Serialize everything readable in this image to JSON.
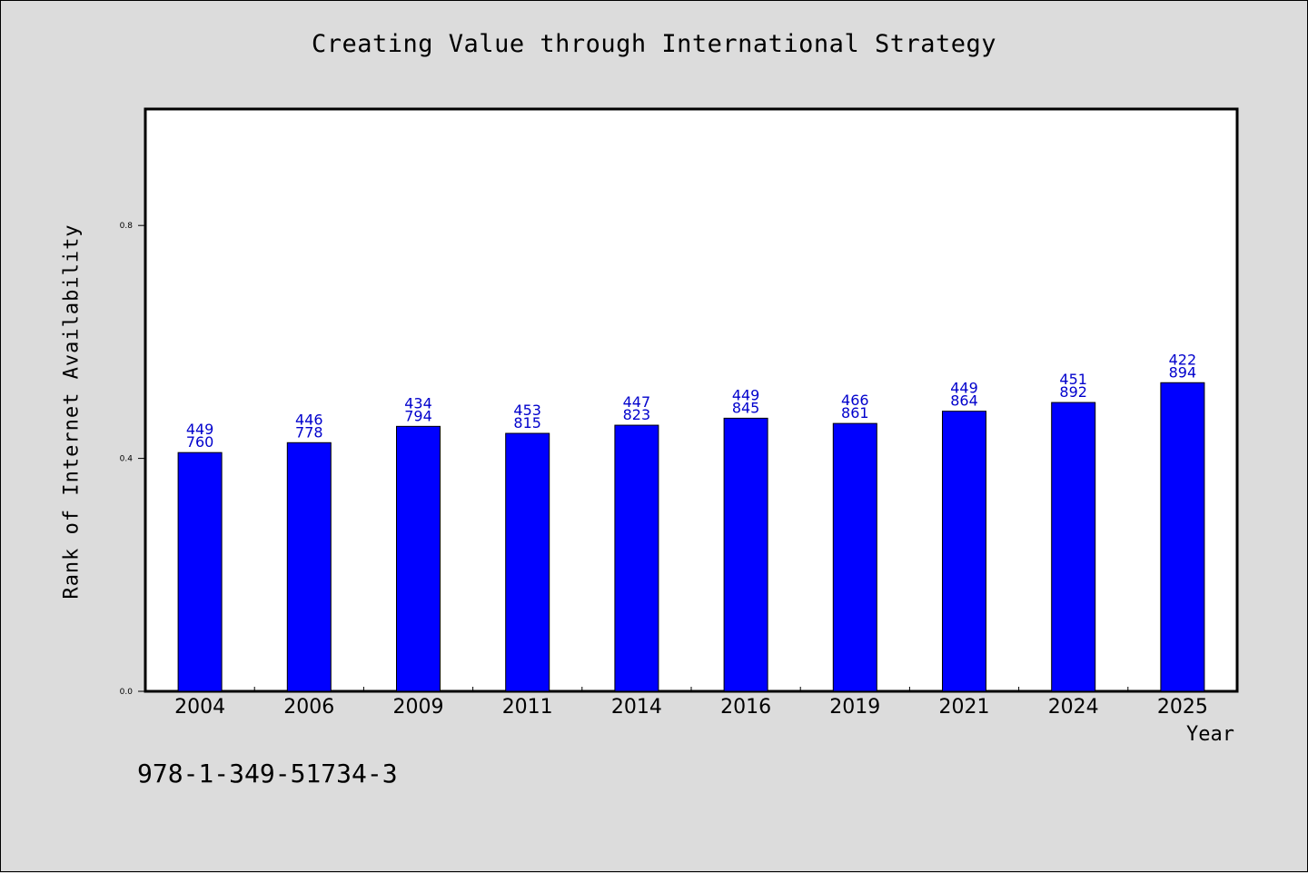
{
  "chart_data": {
    "type": "bar",
    "title": "Creating Value through International Strategy",
    "xlabel": "Year",
    "ylabel": "Rank of Internet Availability",
    "categories": [
      "2004",
      "2006",
      "2009",
      "2011",
      "2014",
      "2016",
      "2019",
      "2021",
      "2024",
      "2025"
    ],
    "values": [
      0.41,
      0.427,
      0.455,
      0.443,
      0.457,
      0.469,
      0.46,
      0.481,
      0.496,
      0.53
    ],
    "data_labels": [
      [
        "449",
        "760"
      ],
      [
        "446",
        "778"
      ],
      [
        "434",
        "794"
      ],
      [
        "453",
        "815"
      ],
      [
        "447",
        "823"
      ],
      [
        "449",
        "845"
      ],
      [
        "466",
        "861"
      ],
      [
        "449",
        "864"
      ],
      [
        "451",
        "892"
      ],
      [
        "422",
        "894"
      ]
    ],
    "yticks": [
      "0.0",
      "0.4",
      "0.8"
    ],
    "ylim": [
      0,
      1.0
    ],
    "grid": false,
    "bar_color": "#0000ff",
    "label_color": "#0000cc"
  },
  "footer": {
    "isbn": "978-1-349-51734-3"
  }
}
